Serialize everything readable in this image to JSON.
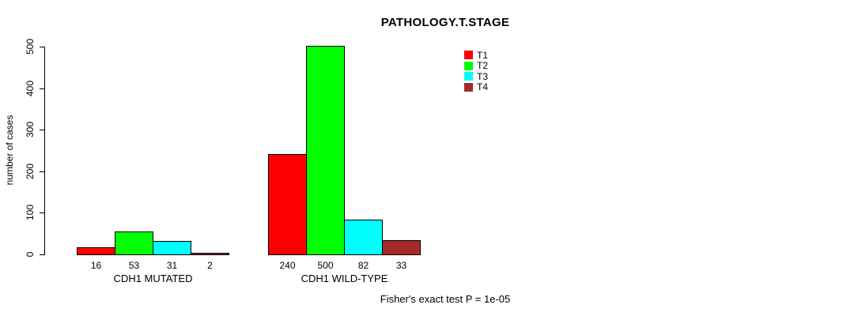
{
  "chart_data": {
    "type": "bar",
    "title": "PATHOLOGY.T.STAGE",
    "ylabel": "number of cases",
    "ylim": [
      0,
      500
    ],
    "yticks": [
      0,
      100,
      200,
      300,
      400,
      500
    ],
    "grid": false,
    "legend_position": "top-right",
    "categories": [
      "CDH1 MUTATED",
      "CDH1 WILD-TYPE"
    ],
    "series": [
      {
        "name": "T1",
        "color": "#ff0000",
        "values": [
          16,
          240
        ]
      },
      {
        "name": "T2",
        "color": "#00ff00",
        "values": [
          53,
          500
        ]
      },
      {
        "name": "T3",
        "color": "#00ffff",
        "values": [
          31,
          82
        ]
      },
      {
        "name": "T4",
        "color": "#a52a2a",
        "values": [
          2,
          33
        ]
      }
    ],
    "bar_value_labels": [
      [
        "16",
        "53",
        "31",
        "2"
      ],
      [
        "240",
        "500",
        "82",
        "33"
      ]
    ],
    "annotation": "Fisher's exact test P = 1e-05"
  },
  "colors": {
    "background": "#ffffff",
    "axis": "#000000",
    "bar_border": "#000000",
    "text": "#000000"
  }
}
